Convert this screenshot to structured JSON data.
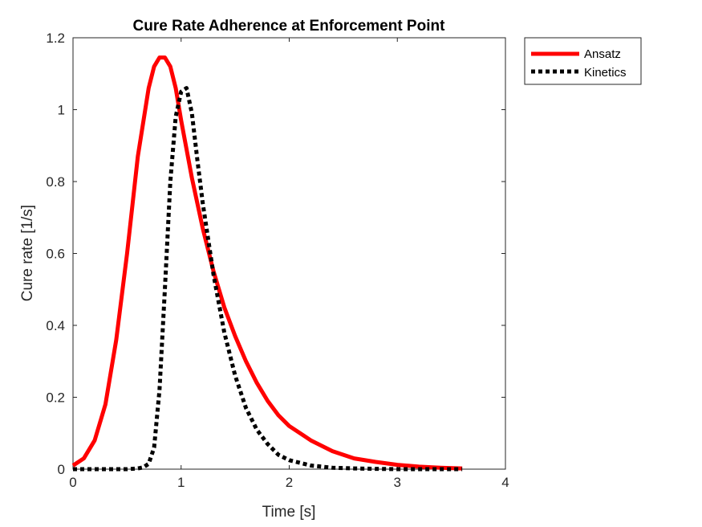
{
  "chart_data": {
    "type": "line",
    "title": "Cure Rate Adherence at Enforcement Point",
    "xlabel": "Time [s]",
    "ylabel": "Cure rate [1/s]",
    "xlim": [
      0,
      4
    ],
    "ylim": [
      0,
      1.2
    ],
    "xticks": [
      0,
      1,
      2,
      3,
      4
    ],
    "yticks": [
      0,
      0.2,
      0.4,
      0.6,
      0.8,
      1,
      1.2
    ],
    "xtick_labels": [
      "0",
      "1",
      "2",
      "3",
      "4"
    ],
    "ytick_labels": [
      "0",
      "0.2",
      "0.4",
      "0.6",
      "0.8",
      "1",
      "1.2"
    ],
    "grid": false,
    "box": true,
    "legend_position": "outside-top-right",
    "series": [
      {
        "name": "Ansatz",
        "color": "#ff0000",
        "style": "solid",
        "x": [
          0,
          0.1,
          0.2,
          0.3,
          0.4,
          0.5,
          0.6,
          0.7,
          0.75,
          0.8,
          0.85,
          0.9,
          0.95,
          1.0,
          1.05,
          1.1,
          1.2,
          1.3,
          1.4,
          1.5,
          1.6,
          1.7,
          1.8,
          1.9,
          2.0,
          2.2,
          2.4,
          2.6,
          2.8,
          3.0,
          3.2,
          3.4,
          3.6
        ],
        "y": [
          0.01,
          0.03,
          0.08,
          0.18,
          0.36,
          0.6,
          0.87,
          1.06,
          1.12,
          1.145,
          1.145,
          1.12,
          1.06,
          0.97,
          0.89,
          0.81,
          0.67,
          0.55,
          0.45,
          0.37,
          0.3,
          0.24,
          0.19,
          0.15,
          0.12,
          0.08,
          0.05,
          0.03,
          0.02,
          0.012,
          0.007,
          0.004,
          0.002
        ]
      },
      {
        "name": "Kinetics",
        "color": "#000000",
        "style": "dotted",
        "x": [
          0,
          0.5,
          0.6,
          0.65,
          0.7,
          0.75,
          0.8,
          0.85,
          0.9,
          0.95,
          1.0,
          1.05,
          1.1,
          1.15,
          1.2,
          1.3,
          1.4,
          1.5,
          1.6,
          1.7,
          1.8,
          1.9,
          2.0,
          2.2,
          2.4,
          2.6,
          2.8,
          3.0,
          3.2,
          3.4,
          3.6
        ],
        "y": [
          0,
          0,
          0.002,
          0.005,
          0.015,
          0.06,
          0.22,
          0.5,
          0.8,
          0.98,
          1.05,
          1.06,
          0.99,
          0.86,
          0.74,
          0.54,
          0.38,
          0.26,
          0.17,
          0.11,
          0.07,
          0.04,
          0.025,
          0.01,
          0.004,
          0.002,
          0.001,
          0,
          0,
          0,
          0
        ]
      }
    ]
  }
}
